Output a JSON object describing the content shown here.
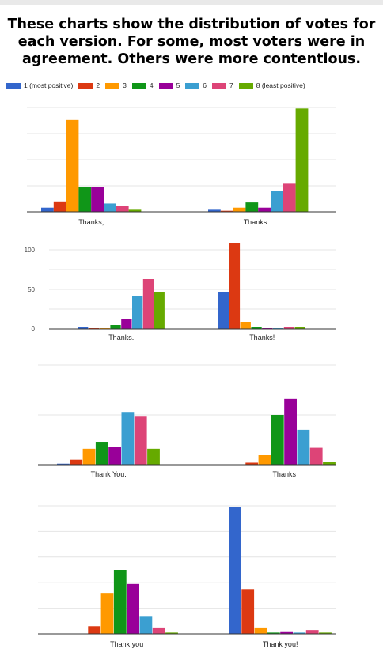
{
  "heading": {
    "lines": [
      "These charts show the distribution of votes for",
      "each version. For some, most voters were in",
      "agreement. Others were more contentious."
    ]
  },
  "legend": [
    {
      "label": "1 (most positive)",
      "color": "#3366cc"
    },
    {
      "label": "2",
      "color": "#dc3912"
    },
    {
      "label": "3",
      "color": "#ff9900"
    },
    {
      "label": "4",
      "color": "#109618"
    },
    {
      "label": "5",
      "color": "#990099"
    },
    {
      "label": "6",
      "color": "#3b9fd1"
    },
    {
      "label": "7",
      "color": "#dd4477"
    },
    {
      "label": "8 (least positive)",
      "color": "#66aa00"
    }
  ],
  "chart_data": [
    {
      "type": "bar",
      "categories": [
        "Thanks,",
        "Thanks..."
      ],
      "series": [
        {
          "name": "1 (most positive)",
          "values": [
            4,
            2
          ]
        },
        {
          "name": "2",
          "values": [
            10,
            1
          ]
        },
        {
          "name": "3",
          "values": [
            88,
            4
          ]
        },
        {
          "name": "4",
          "values": [
            24,
            9
          ]
        },
        {
          "name": "5",
          "values": [
            24,
            4
          ]
        },
        {
          "name": "6",
          "values": [
            8,
            20
          ]
        },
        {
          "name": "7",
          "values": [
            6,
            27
          ]
        },
        {
          "name": "8 (least positive)",
          "values": [
            2,
            99
          ]
        }
      ],
      "ylim": [
        0,
        100
      ],
      "ticks": [],
      "gridlines": [
        0,
        25,
        50,
        75,
        100
      ],
      "grid": true
    },
    {
      "type": "bar",
      "categories": [
        "Thanks.",
        "Thanks!"
      ],
      "series": [
        {
          "name": "1 (most positive)",
          "values": [
            2,
            46
          ]
        },
        {
          "name": "2",
          "values": [
            1,
            108
          ]
        },
        {
          "name": "3",
          "values": [
            1,
            9
          ]
        },
        {
          "name": "4",
          "values": [
            5,
            2
          ]
        },
        {
          "name": "5",
          "values": [
            12,
            1
          ]
        },
        {
          "name": "6",
          "values": [
            41,
            1
          ]
        },
        {
          "name": "7",
          "values": [
            63,
            2
          ]
        },
        {
          "name": "8 (least positive)",
          "values": [
            46,
            2
          ]
        }
      ],
      "ylim": [
        0,
        110
      ],
      "ticks": [
        "0",
        "50",
        "100"
      ],
      "tick_values": [
        0,
        50,
        100
      ],
      "gridlines": [
        0,
        25,
        50,
        75,
        100
      ],
      "grid": true
    },
    {
      "type": "bar",
      "categories": [
        "Thank You.",
        "Thanks"
      ],
      "series": [
        {
          "name": "1 (most positive)",
          "values": [
            1,
            0
          ]
        },
        {
          "name": "2",
          "values": [
            5,
            2
          ]
        },
        {
          "name": "3",
          "values": [
            16,
            10
          ]
        },
        {
          "name": "4",
          "values": [
            23,
            50
          ]
        },
        {
          "name": "5",
          "values": [
            18,
            66
          ]
        },
        {
          "name": "6",
          "values": [
            53,
            35
          ]
        },
        {
          "name": "7",
          "values": [
            49,
            17
          ]
        },
        {
          "name": "8 (least positive)",
          "values": [
            16,
            3
          ]
        }
      ],
      "ylim": [
        0,
        100
      ],
      "ticks": [],
      "gridlines": [
        0,
        25,
        50,
        75,
        100
      ],
      "grid": true
    },
    {
      "type": "bar",
      "categories": [
        "Thank you",
        "Thank you!"
      ],
      "series": [
        {
          "name": "1 (most positive)",
          "values": [
            0,
            99
          ]
        },
        {
          "name": "2",
          "values": [
            6,
            35
          ]
        },
        {
          "name": "3",
          "values": [
            32,
            5
          ]
        },
        {
          "name": "4",
          "values": [
            50,
            1
          ]
        },
        {
          "name": "5",
          "values": [
            39,
            2
          ]
        },
        {
          "name": "6",
          "values": [
            14,
            1
          ]
        },
        {
          "name": "7",
          "values": [
            5,
            3
          ]
        },
        {
          "name": "8 (least positive)",
          "values": [
            1,
            1
          ]
        }
      ],
      "ylim": [
        0,
        100
      ],
      "ticks": [],
      "gridlines": [
        0,
        20,
        40,
        60,
        80,
        100
      ],
      "grid": true
    }
  ]
}
